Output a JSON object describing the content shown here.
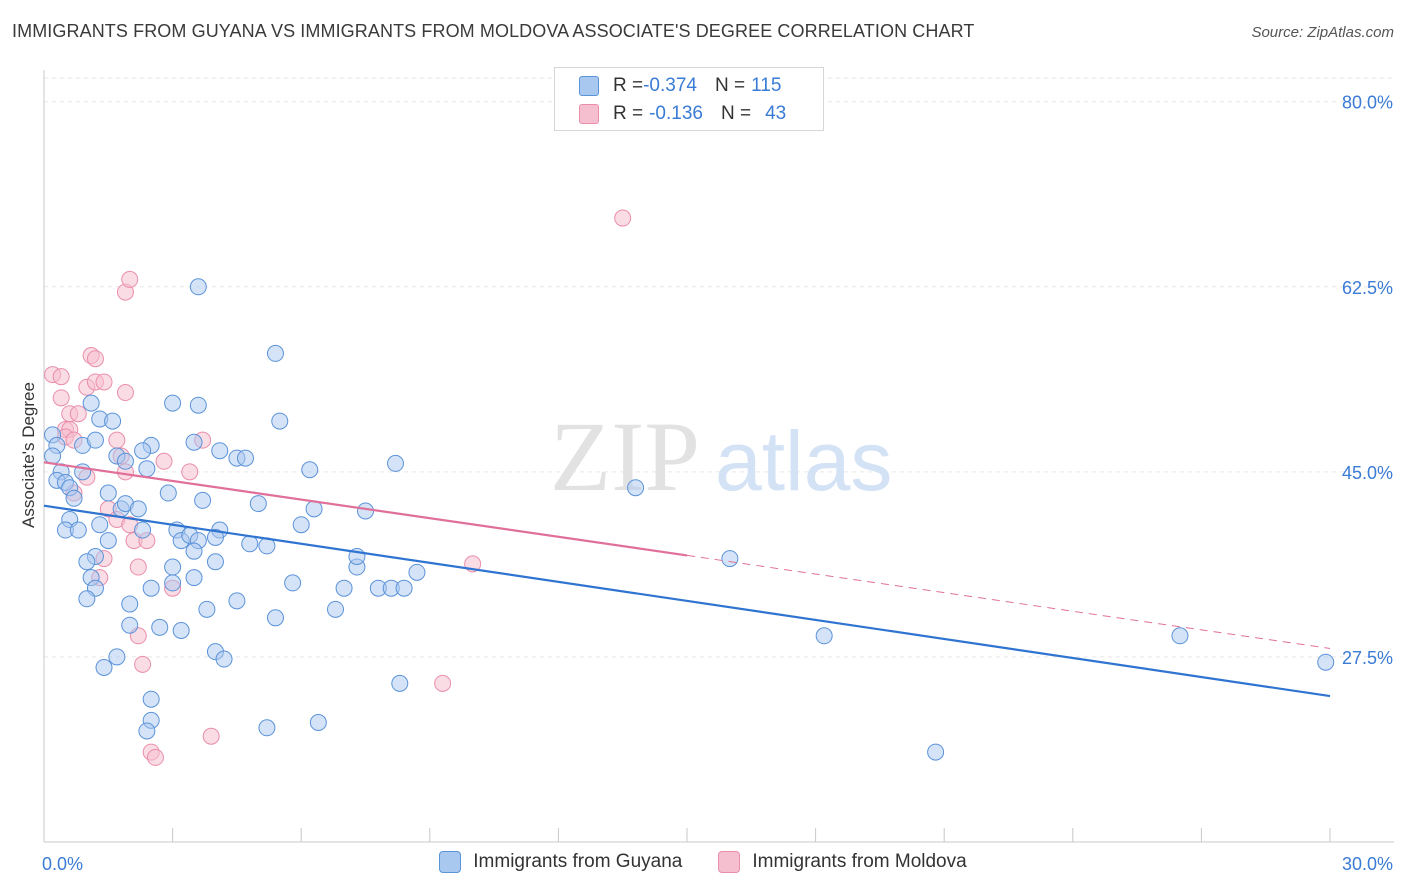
{
  "title": "IMMIGRANTS FROM GUYANA VS IMMIGRANTS FROM MOLDOVA ASSOCIATE'S DEGREE CORRELATION CHART",
  "source": "Source: ZipAtlas.com",
  "watermark": {
    "zip": "ZIP",
    "atlas": "atlas"
  },
  "legend": {
    "rows": [
      {
        "r_label": "R = ",
        "r_value": "-0.374",
        "n_label": "N = ",
        "n_value": "115"
      },
      {
        "r_label": "R = ",
        "r_value": "-0.136",
        "n_label": "N = ",
        "n_value": "43"
      }
    ]
  },
  "colors": {
    "guyana_fill": "#a9c8f0",
    "guyana_stroke": "#5b93d9",
    "guyana_line": "#2f74d0",
    "moldova_fill": "#f6bfd0",
    "moldova_stroke": "#ea8eab",
    "moldova_line": "#e0709a",
    "tick_label": "#3a7bd5",
    "grid": "#e6e6e6"
  },
  "chart_data": {
    "type": "scatter",
    "title": "IMMIGRANTS FROM GUYANA VS IMMIGRANTS FROM MOLDOVA ASSOCIATE'S DEGREE CORRELATION CHART",
    "xlabel": "",
    "ylabel": "Associate's Degree",
    "xlim": [
      0,
      30
    ],
    "ylim": [
      10,
      83
    ],
    "x_tick_labels": [
      "0.0%",
      "30.0%"
    ],
    "y_ticks": [
      27.5,
      45.0,
      62.5,
      80.0
    ],
    "y_tick_labels": [
      "27.5%",
      "45.0%",
      "62.5%",
      "80.0%"
    ],
    "grid": true,
    "legend_position": "bottom",
    "series": [
      {
        "name": "Immigrants from Guyana",
        "trend": {
          "x": [
            0,
            30
          ],
          "y": [
            41.8,
            23.8
          ]
        },
        "points": [
          [
            0.2,
            48.5
          ],
          [
            0.3,
            47.5
          ],
          [
            0.2,
            46.5
          ],
          [
            0.4,
            45.0
          ],
          [
            0.3,
            44.2
          ],
          [
            0.5,
            44.0
          ],
          [
            0.6,
            43.5
          ],
          [
            0.7,
            42.5
          ],
          [
            0.6,
            40.5
          ],
          [
            0.5,
            39.5
          ],
          [
            0.8,
            39.5
          ],
          [
            0.9,
            45.0
          ],
          [
            0.9,
            47.5
          ],
          [
            1.1,
            51.5
          ],
          [
            1.3,
            50.0
          ],
          [
            1.2,
            48.0
          ],
          [
            1.6,
            49.8
          ],
          [
            1.7,
            46.5
          ],
          [
            1.9,
            46.0
          ],
          [
            1.5,
            43.0
          ],
          [
            1.8,
            41.5
          ],
          [
            1.9,
            42.0
          ],
          [
            1.3,
            40.0
          ],
          [
            2.2,
            41.5
          ],
          [
            2.3,
            39.5
          ],
          [
            1.5,
            38.5
          ],
          [
            1.2,
            37.0
          ],
          [
            1.0,
            36.5
          ],
          [
            1.1,
            35.0
          ],
          [
            1.2,
            34.0
          ],
          [
            1.0,
            33.0
          ],
          [
            2.5,
            47.5
          ],
          [
            2.4,
            45.3
          ],
          [
            2.3,
            47.0
          ],
          [
            3.0,
            51.5
          ],
          [
            3.6,
            51.3
          ],
          [
            3.5,
            47.8
          ],
          [
            4.1,
            47.0
          ],
          [
            4.5,
            46.3
          ],
          [
            4.7,
            46.3
          ],
          [
            2.9,
            43.0
          ],
          [
            3.7,
            42.3
          ],
          [
            3.1,
            39.5
          ],
          [
            3.2,
            38.5
          ],
          [
            3.4,
            39.0
          ],
          [
            3.6,
            38.5
          ],
          [
            4.1,
            39.5
          ],
          [
            4.0,
            38.8
          ],
          [
            3.5,
            37.5
          ],
          [
            3.0,
            36.0
          ],
          [
            4.0,
            36.5
          ],
          [
            3.5,
            35.0
          ],
          [
            3.0,
            34.5
          ],
          [
            2.5,
            34.0
          ],
          [
            2.0,
            32.5
          ],
          [
            3.8,
            32.0
          ],
          [
            4.5,
            32.8
          ],
          [
            2.0,
            30.5
          ],
          [
            2.7,
            30.3
          ],
          [
            3.2,
            30.0
          ],
          [
            4.0,
            28.0
          ],
          [
            4.2,
            27.3
          ],
          [
            1.7,
            27.5
          ],
          [
            1.4,
            26.5
          ],
          [
            2.5,
            23.5
          ],
          [
            2.5,
            21.5
          ],
          [
            2.4,
            20.5
          ],
          [
            3.6,
            62.5
          ],
          [
            5.4,
            56.2
          ],
          [
            5.5,
            49.8
          ],
          [
            5.0,
            42.0
          ],
          [
            4.8,
            38.2
          ],
          [
            5.2,
            38.0
          ],
          [
            5.8,
            34.5
          ],
          [
            6.0,
            40.0
          ],
          [
            6.2,
            45.2
          ],
          [
            6.3,
            41.5
          ],
          [
            7.0,
            34.0
          ],
          [
            6.8,
            32.0
          ],
          [
            7.3,
            36.0
          ],
          [
            7.3,
            37.0
          ],
          [
            7.5,
            41.3
          ],
          [
            7.8,
            34.0
          ],
          [
            8.1,
            34.0
          ],
          [
            8.4,
            34.0
          ],
          [
            8.7,
            35.5
          ],
          [
            8.2,
            45.8
          ],
          [
            5.4,
            31.2
          ],
          [
            8.3,
            25.0
          ],
          [
            6.4,
            21.3
          ],
          [
            5.2,
            20.8
          ],
          [
            13.8,
            43.5
          ],
          [
            16.0,
            36.8
          ],
          [
            18.2,
            29.5
          ],
          [
            20.8,
            18.5
          ],
          [
            26.5,
            29.5
          ],
          [
            29.9,
            27.0
          ]
        ]
      },
      {
        "name": "Immigrants from Moldova",
        "trend": {
          "x": [
            0,
            15
          ],
          "y": [
            45.9,
            37.1
          ]
        },
        "dashed_extension": {
          "x": [
            15,
            30
          ],
          "y": [
            37.1,
            28.3
          ]
        },
        "points": [
          [
            0.2,
            54.2
          ],
          [
            0.4,
            54.0
          ],
          [
            0.4,
            52.0
          ],
          [
            0.5,
            49.0
          ],
          [
            0.6,
            49.0
          ],
          [
            0.5,
            48.3
          ],
          [
            0.7,
            48.0
          ],
          [
            0.6,
            50.5
          ],
          [
            0.8,
            50.5
          ],
          [
            1.0,
            44.5
          ],
          [
            0.7,
            43.0
          ],
          [
            1.0,
            53.0
          ],
          [
            1.2,
            53.5
          ],
          [
            1.1,
            56.0
          ],
          [
            1.2,
            55.7
          ],
          [
            1.4,
            53.5
          ],
          [
            1.7,
            48.0
          ],
          [
            1.8,
            46.5
          ],
          [
            1.9,
            45.0
          ],
          [
            1.5,
            41.5
          ],
          [
            1.7,
            40.5
          ],
          [
            2.0,
            40.0
          ],
          [
            2.1,
            38.5
          ],
          [
            2.4,
            38.5
          ],
          [
            1.4,
            36.8
          ],
          [
            1.3,
            35.0
          ],
          [
            2.2,
            36.0
          ],
          [
            3.0,
            34.0
          ],
          [
            2.2,
            29.5
          ],
          [
            2.3,
            26.8
          ],
          [
            2.5,
            18.5
          ],
          [
            2.6,
            18.0
          ],
          [
            1.9,
            62.0
          ],
          [
            2.0,
            63.2
          ],
          [
            1.9,
            52.5
          ],
          [
            3.7,
            48.0
          ],
          [
            2.8,
            46.0
          ],
          [
            3.4,
            45.0
          ],
          [
            3.9,
            20.0
          ],
          [
            9.3,
            25.0
          ],
          [
            10.0,
            36.3
          ],
          [
            13.5,
            69.0
          ]
        ]
      }
    ]
  },
  "bottom_legend": [
    "Immigrants from Guyana",
    "Immigrants from Moldova"
  ]
}
